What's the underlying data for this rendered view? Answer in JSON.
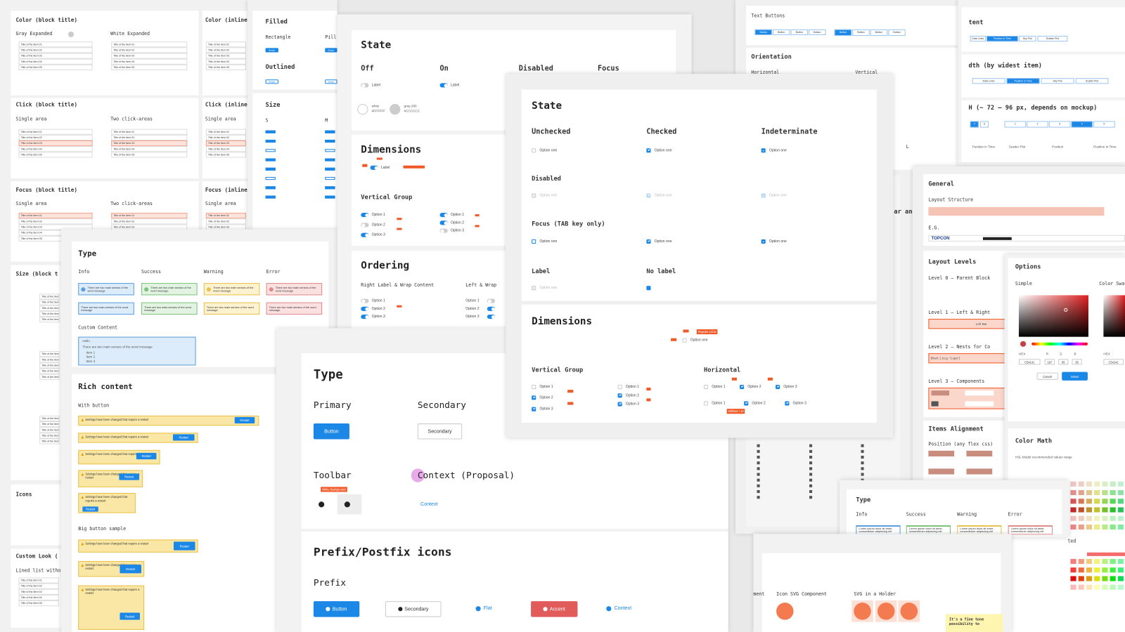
{
  "list_items": [
    "Title of the item 01",
    "Title of the item 02",
    "Title of the item 03",
    "Title of the item 04",
    "Title of the item 05"
  ],
  "sheet_list": {
    "texts": [
      "Color (block title)",
      "Gray Expanded",
      "White Expanded",
      "Click (block title)",
      "Single area",
      "Two click-areas",
      "Focus (block title)",
      "Single area",
      "Two click-areas",
      "Size (block t",
      "Icons",
      "Custom Look (",
      "Lined list without",
      "Color (inline",
      "Click (inline",
      "Single area",
      "Focus (inline",
      "Single area"
    ]
  },
  "sheet_badge": {
    "texts": [
      "Filled",
      "Rectangle",
      "Pill",
      "Outlined",
      "Size",
      "S",
      "M",
      "Badge",
      "Badge",
      "Badge",
      "Badge"
    ]
  },
  "sheet_toggle": {
    "texts": [
      "State",
      "Off",
      "On",
      "Disabled",
      "Focus",
      "Label",
      "Label",
      "white",
      "#FFFFFF",
      "gray-200",
      "#CCCCCC",
      "Dimensions",
      "Label",
      "Vertical Group",
      "Option 1",
      "Option 2",
      "Option 3",
      "Option 1",
      "Option 2",
      "Option 3",
      "Ordering",
      "Right Label & Wrap Content",
      "Left & Wrap",
      "Option 1",
      "Option 2",
      "Option 3",
      "Option 1",
      "Option 2",
      "Option 3"
    ]
  },
  "sheet_checkbox": {
    "texts": [
      "State",
      "Unchecked",
      "Checked",
      "Indeterminate",
      "Option one",
      "Option one",
      "Option one",
      "Disabled",
      "Option one",
      "Option one",
      "Option one",
      "Focus (TAB key only)",
      "Option one",
      "Option one",
      "Option one",
      "Label",
      "No label",
      "Option one",
      "Dimensions",
      "Option one",
      "Regular 14/16",
      "Vertical Group",
      "Horizontal",
      "Option 1",
      "Option 2",
      "Option 3",
      "Option 1",
      "Option 2",
      "Option 3",
      "Option 1",
      "Option 2",
      "Option 3",
      "Option 1",
      "Option 2",
      "Option 3",
      "Without +16"
    ]
  },
  "sheet_message": {
    "texts": [
      "Type",
      "Info",
      "Success",
      "Warning",
      "Error",
      "There are two main senses of the word message",
      "There are two main senses of the word message",
      "There are two main senses of the word message",
      "There are two main senses of the word message",
      "There are two main senses of the word message",
      "There are two main senses of the word message",
      "There are two main senses of the word message",
      "There are two main senses of the word message",
      "Custom Content",
      "Hello",
      "There are two main senses of the word message",
      "Item 1",
      "Item 2",
      "Item 3",
      "Rich content",
      "With button",
      "Settings have been changed that require a restart",
      "Restart",
      "Settings have been changed that require a restart",
      "Restart",
      "Settings have been changed that require a restart",
      "Restart",
      "Settings have been changed that require a restart",
      "Restart",
      "Settings have been changed that require a restart",
      "Restart",
      "Big button sample",
      "Settings have been changed that require a restart",
      "Restart",
      "Settings have been changed that require a restart",
      "Restart",
      "Settings have been changed that require a restart",
      "Restart"
    ]
  },
  "sheet_button": {
    "texts": [
      "Type",
      "Primary",
      "Secondary",
      "Button",
      "Secondary",
      "Toolbar",
      "Context (Proposal)",
      "White Background",
      "Context",
      "Prefix/Postfix icons",
      "Prefix",
      "Button",
      "Secondary",
      "Flat",
      "Accent",
      "Context"
    ]
  },
  "sheet_text_buttons": {
    "texts": [
      "Text Buttons",
      "Orientation",
      "Horizontal",
      "Vertical",
      "Button",
      "Button",
      "Button",
      "Button",
      "Button",
      "Button",
      "Button",
      "Button",
      "ar and",
      "L"
    ]
  },
  "sheet_segmented": {
    "texts": [
      "tent",
      "Data Links",
      "Position in Time",
      "Sky Plot",
      "Scatter Plot",
      "dth (by widest item)",
      "Data Links",
      "Position in Time",
      "Sky Plot",
      "Scatter Plot",
      "H (~ 72 – 96 px, depends on mockup)",
      "4",
      "5",
      "1",
      "2",
      "3",
      "4",
      "5",
      "Position in Time",
      "Scatter Plot",
      "Position",
      "Position in Time"
    ]
  },
  "sheet_layout": {
    "texts": [
      "General",
      "Layout Structure",
      "E.G.",
      "TOPCON",
      "Layout Levels",
      "Level 0 – Parent Block",
      "Level 1 – Left & Right",
      "Left Bar",
      "Level 2 – Nests for Co",
      "Block 1 (e.g. \"Logo\")",
      "Level 3 – Components",
      "Items Alignment",
      "Position (any flex css)"
    ]
  },
  "sheet_color": {
    "texts": [
      "Options",
      "Simple",
      "Color Swat",
      "HEX",
      "R",
      "G",
      "B",
      "C54141",
      "197",
      "65",
      "65",
      "Cancel",
      "Select",
      "HEX",
      "C54141",
      "Color Math",
      "HSL Model recommended values range",
      "ted"
    ]
  },
  "sheet_msg_small": {
    "texts": [
      "Type",
      "Info",
      "Success",
      "Warning",
      "Error",
      "Lorem ipsum dolor sit amet, consectetuer adipiscing elit",
      "Lorem ipsum dolor sit amet, consectetuer adipiscing elit",
      "Lorem ipsum dolor sit amet, consectetuer adipiscing elit",
      "Lorem ipsum dolor sit amet, consectetuer adipiscing elit"
    ]
  },
  "sheet_icons": {
    "texts": [
      "ment",
      "Icon SVG Component",
      "SVG in a Holder",
      "It's a fine tune possibility to"
    ]
  }
}
